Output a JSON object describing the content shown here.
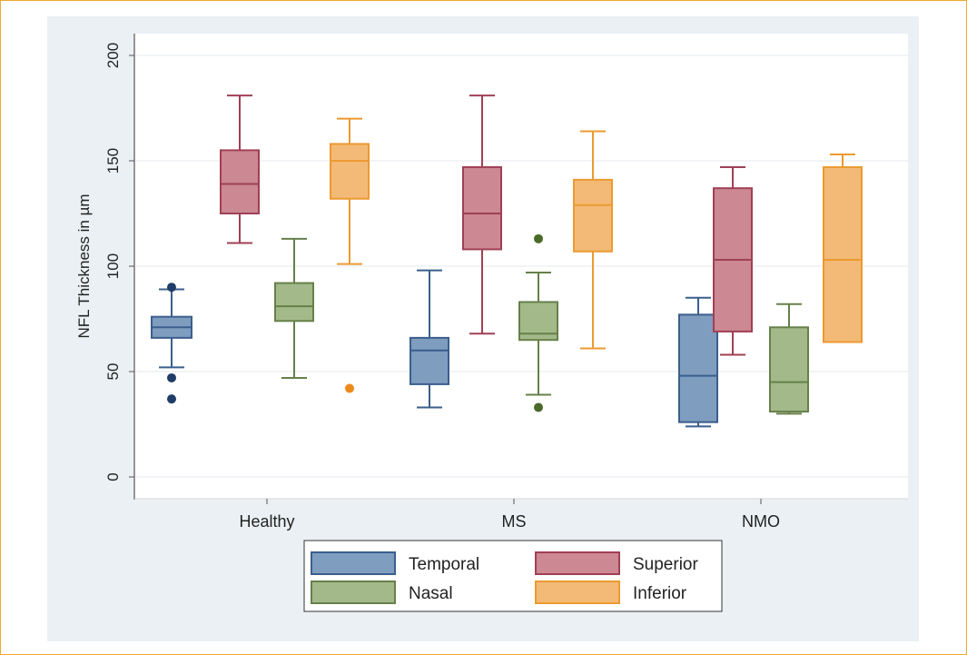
{
  "chart_data": {
    "type": "box",
    "ylabel": "NFL Thickness in µm",
    "xlabel": "",
    "ylim": [
      0,
      200
    ],
    "yticks": [
      0,
      50,
      100,
      150,
      200
    ],
    "grid": true,
    "legend_position": "bottom",
    "categories": [
      "Healthy",
      "MS",
      "NMO"
    ],
    "series": [
      {
        "name": "Temporal",
        "color": "#7f9dbf",
        "edge": "#3a5f8c",
        "boxes": [
          {
            "min": 52,
            "q1": 66,
            "median": 71,
            "q3": 76,
            "max": 89,
            "outliers": [
              90,
              47,
              37
            ]
          },
          {
            "min": 33,
            "q1": 44,
            "median": 60,
            "q3": 66,
            "max": 98,
            "outliers": []
          },
          {
            "min": 24,
            "q1": 26,
            "median": 48,
            "q3": 77,
            "max": 85,
            "outliers": []
          }
        ]
      },
      {
        "name": "Superior",
        "color": "#cc8893",
        "edge": "#a04055",
        "boxes": [
          {
            "min": 111,
            "q1": 125,
            "median": 139,
            "q3": 155,
            "max": 181,
            "outliers": []
          },
          {
            "min": 68,
            "q1": 108,
            "median": 125,
            "q3": 147,
            "max": 181,
            "outliers": []
          },
          {
            "min": 58,
            "q1": 69,
            "median": 103,
            "q3": 137,
            "max": 147,
            "outliers": []
          }
        ]
      },
      {
        "name": "Nasal",
        "color": "#a3b98a",
        "edge": "#66804a",
        "boxes": [
          {
            "min": 47,
            "q1": 74,
            "median": 81,
            "q3": 92,
            "max": 113,
            "outliers": []
          },
          {
            "min": 39,
            "q1": 65,
            "median": 68,
            "q3": 83,
            "max": 97,
            "outliers": [
              113,
              33
            ]
          },
          {
            "min": 30,
            "q1": 31,
            "median": 45,
            "q3": 71,
            "max": 82,
            "outliers": []
          }
        ]
      },
      {
        "name": "Inferior",
        "color": "#f3ba77",
        "edge": "#ec9a30",
        "boxes": [
          {
            "min": 101,
            "q1": 132,
            "median": 150,
            "q3": 158,
            "max": 170,
            "outliers": [
              42
            ]
          },
          {
            "min": 61,
            "q1": 107,
            "median": 129,
            "q3": 141,
            "max": 164,
            "outliers": []
          },
          {
            "min": 64,
            "q1": 64,
            "median": 103,
            "q3": 147,
            "max": 153,
            "outliers": []
          }
        ]
      }
    ]
  }
}
